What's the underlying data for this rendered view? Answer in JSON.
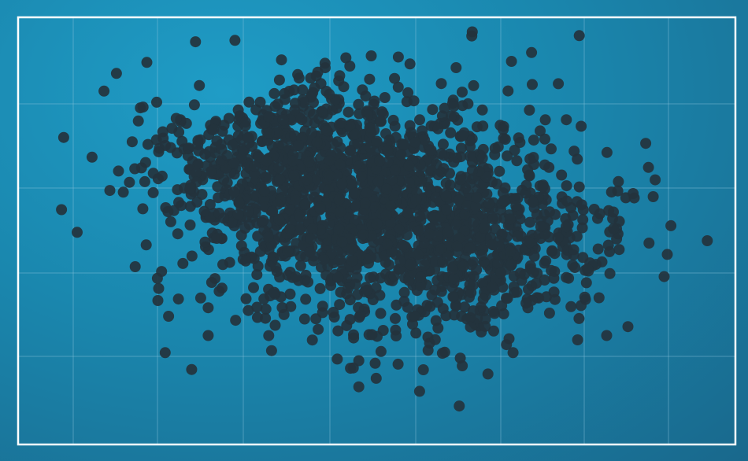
{
  "chart_data": {
    "type": "scatter",
    "title": "",
    "xlabel": "",
    "ylabel": "",
    "xlim": [
      0,
      100
    ],
    "ylim": [
      0,
      100
    ],
    "grid": true,
    "legend": "none",
    "colors": {
      "point": "#24333d",
      "grid": "#8fc6dd",
      "frame": "#ffffff"
    },
    "clusters": [
      {
        "cx": 41,
        "cy": 64,
        "sx": 10.5,
        "sy": 10,
        "n": 780
      },
      {
        "cx": 60,
        "cy": 47,
        "sx": 11.5,
        "sy": 11,
        "n": 720
      },
      {
        "cx": 48,
        "cy": 55,
        "sx": 15,
        "sy": 14,
        "n": 500
      }
    ],
    "outliers": [
      {
        "x": 87.5,
        "y": 70.5
      },
      {
        "x": 90.5,
        "y": 44.5
      },
      {
        "x": 83,
        "y": 50.5
      },
      {
        "x": 82.5,
        "y": 40
      },
      {
        "x": 61.5,
        "y": 9
      },
      {
        "x": 47.5,
        "y": 13.5
      },
      {
        "x": 65.5,
        "y": 16.5
      },
      {
        "x": 20.5,
        "y": 21.5
      },
      {
        "x": 26.5,
        "y": 25.5
      },
      {
        "x": 26.5,
        "y": 32
      },
      {
        "x": 20,
        "y": 40.5
      },
      {
        "x": 73.5,
        "y": 76
      },
      {
        "x": 78.5,
        "y": 74.5
      },
      {
        "x": 79,
        "y": 34.5
      },
      {
        "x": 76.5,
        "y": 57
      },
      {
        "x": 63.5,
        "y": 84
      },
      {
        "x": 59,
        "y": 84.5
      },
      {
        "x": 49,
        "y": 85.5
      },
      {
        "x": 24,
        "y": 60
      },
      {
        "x": 56.5,
        "y": 17.5
      },
      {
        "x": 78,
        "y": 24.5
      },
      {
        "x": 69,
        "y": 21.5
      },
      {
        "x": 44.5,
        "y": 20
      }
    ]
  }
}
